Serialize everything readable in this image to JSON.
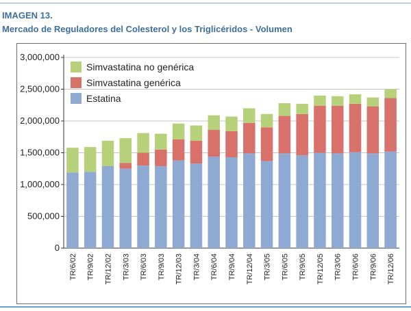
{
  "header": {
    "label": "IMAGEN 13.",
    "title": "Mercado de Reguladores del Colesterol y los Triglicéridos - Volumen"
  },
  "chart_data": {
    "type": "bar",
    "stacked": true,
    "categories": [
      "TR/6/02",
      "TR/9/02",
      "TR/12/02",
      "TR/3/03",
      "TR/6/03",
      "TR/9/03",
      "TR/12/03",
      "TR/3/04",
      "TR/6/04",
      "TR/9/04",
      "TR/12/04",
      "TR/3/05",
      "TR/6/05",
      "TR/9/05",
      "TR/12/05",
      "TR/3/06",
      "TR/6/06",
      "TR/9/06",
      "TR/12/06"
    ],
    "series": [
      {
        "name": "Estatina",
        "color": "#8ea9d2",
        "values": [
          1190000,
          1200000,
          1290000,
          1250000,
          1300000,
          1290000,
          1380000,
          1330000,
          1440000,
          1430000,
          1490000,
          1370000,
          1490000,
          1460000,
          1500000,
          1490000,
          1510000,
          1490000,
          1520000
        ]
      },
      {
        "name": "Simvastatina genérica",
        "color": "#d9716b",
        "values": [
          0,
          0,
          0,
          90000,
          200000,
          260000,
          330000,
          360000,
          420000,
          410000,
          480000,
          530000,
          590000,
          650000,
          740000,
          750000,
          760000,
          740000,
          840000
        ]
      },
      {
        "name": "Simvastatina no genérica",
        "color": "#b7d17a",
        "values": [
          390000,
          390000,
          400000,
          390000,
          310000,
          250000,
          250000,
          240000,
          230000,
          230000,
          230000,
          210000,
          200000,
          160000,
          160000,
          150000,
          150000,
          140000,
          140000
        ]
      }
    ],
    "legend_order": [
      "Simvastatina no genérica",
      "Simvastatina genérica",
      "Estatina"
    ],
    "ylim": [
      0,
      3000000
    ],
    "yticks": [
      0,
      500000,
      1000000,
      1500000,
      2000000,
      2500000,
      3000000
    ],
    "ytick_labels": [
      "0",
      "500,000",
      "1,000,000",
      "1,500,000",
      "2,000,000",
      "2,500,000",
      "3,000,000"
    ],
    "grid": true,
    "legend_position": "top-left",
    "xlabel": "",
    "ylabel": "",
    "gridline_color": "#c4c4c4"
  }
}
